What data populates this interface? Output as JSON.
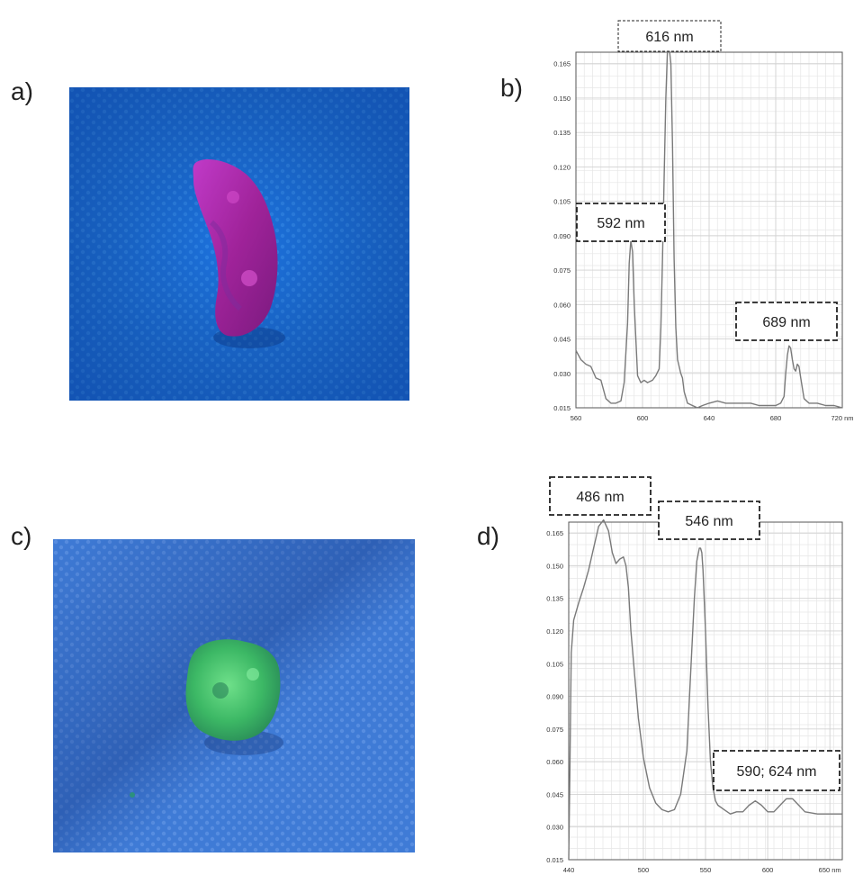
{
  "panels": {
    "a": {
      "letter": "a)"
    },
    "b": {
      "letter": "b)"
    },
    "c": {
      "letter": "c)"
    },
    "d": {
      "letter": "d)"
    }
  },
  "photos": {
    "a": {
      "background": "#1e78e6",
      "specimen_color": "#b02aa8"
    },
    "c": {
      "background": "#3c7ad6",
      "specimen_color": "#3fc36a"
    }
  },
  "chart_data": [
    {
      "type": "line",
      "panel": "b",
      "x_unit": "nm",
      "xlim": [
        560,
        720
      ],
      "ylim": [
        0.015,
        0.17
      ],
      "x_ticks": [
        560,
        600,
        640,
        680,
        720
      ],
      "x_tick_labels": [
        "560",
        "600",
        "640",
        "680",
        "720 nm"
      ],
      "y_ticks": [
        0.015,
        0.03,
        0.045,
        0.06,
        0.075,
        0.09,
        0.105,
        0.12,
        0.135,
        0.15,
        0.165
      ],
      "y_tick_labels": [
        "0.015",
        "0.030",
        "0.045",
        "0.060",
        "0.075",
        "0.090",
        "0.105",
        "0.120",
        "0.135",
        "0.150",
        "0.165"
      ],
      "grid": true,
      "line_color": "#7a7a7a",
      "series": [
        {
          "x": [
            560,
            563,
            566,
            569,
            572,
            575,
            578,
            581,
            584,
            587,
            589,
            591,
            592,
            593,
            594,
            595,
            597,
            599,
            601,
            603,
            606,
            608,
            610,
            611,
            612,
            613,
            614,
            615,
            616,
            617,
            618,
            619,
            620,
            621,
            622,
            623,
            624,
            625,
            627,
            630,
            633,
            636,
            640,
            645,
            650,
            655,
            660,
            665,
            670,
            675,
            680,
            683,
            685,
            686,
            687,
            688,
            689,
            690,
            691,
            692,
            693,
            694,
            695,
            697,
            700,
            705,
            710,
            715,
            720
          ],
          "y": [
            0.04,
            0.036,
            0.034,
            0.033,
            0.028,
            0.027,
            0.019,
            0.017,
            0.017,
            0.018,
            0.026,
            0.052,
            0.078,
            0.088,
            0.083,
            0.06,
            0.029,
            0.026,
            0.027,
            0.026,
            0.027,
            0.029,
            0.032,
            0.05,
            0.08,
            0.115,
            0.15,
            0.172,
            0.172,
            0.165,
            0.13,
            0.08,
            0.05,
            0.036,
            0.033,
            0.03,
            0.028,
            0.022,
            0.017,
            0.016,
            0.015,
            0.016,
            0.017,
            0.018,
            0.017,
            0.017,
            0.017,
            0.017,
            0.016,
            0.016,
            0.016,
            0.017,
            0.02,
            0.03,
            0.038,
            0.042,
            0.041,
            0.036,
            0.032,
            0.031,
            0.034,
            0.033,
            0.028,
            0.019,
            0.017,
            0.017,
            0.016,
            0.016,
            0.015
          ]
        }
      ],
      "annotations": [
        {
          "text": "616 nm",
          "style": "dotted",
          "attach_x": 616
        },
        {
          "text": "592 nm",
          "style": "dashed",
          "attach_x": 592
        },
        {
          "text": "689 nm",
          "style": "dashed",
          "attach_x": 689
        }
      ]
    },
    {
      "type": "line",
      "panel": "d",
      "x_unit": "nm",
      "xlim": [
        440,
        660
      ],
      "ylim": [
        0.015,
        0.17
      ],
      "x_ticks": [
        440,
        500,
        550,
        600,
        650
      ],
      "x_tick_labels": [
        "440",
        "500",
        "550",
        "600",
        "650 nm"
      ],
      "y_ticks": [
        0.015,
        0.03,
        0.045,
        0.06,
        0.075,
        0.09,
        0.105,
        0.12,
        0.135,
        0.15,
        0.165
      ],
      "y_tick_labels": [
        "0.015",
        "0.030",
        "0.045",
        "0.060",
        "0.075",
        "0.090",
        "0.105",
        "0.120",
        "0.135",
        "0.150",
        "0.165"
      ],
      "grid": true,
      "line_color": "#7a7a7a",
      "series": [
        {
          "x": [
            440,
            441,
            442,
            444,
            448,
            452,
            456,
            460,
            464,
            468,
            472,
            475,
            478,
            481,
            484,
            486,
            488,
            490,
            493,
            496,
            500,
            505,
            510,
            515,
            520,
            525,
            530,
            535,
            538,
            541,
            543,
            545,
            546,
            547,
            548,
            550,
            552,
            554,
            556,
            558,
            560,
            565,
            570,
            575,
            580,
            585,
            590,
            595,
            600,
            605,
            610,
            615,
            620,
            625,
            630,
            640,
            650,
            660
          ],
          "y": [
            0.015,
            0.06,
            0.11,
            0.125,
            0.133,
            0.14,
            0.148,
            0.158,
            0.168,
            0.171,
            0.166,
            0.156,
            0.151,
            0.153,
            0.154,
            0.15,
            0.14,
            0.12,
            0.1,
            0.08,
            0.062,
            0.048,
            0.041,
            0.038,
            0.037,
            0.038,
            0.045,
            0.065,
            0.1,
            0.135,
            0.152,
            0.158,
            0.158,
            0.156,
            0.148,
            0.12,
            0.085,
            0.06,
            0.048,
            0.042,
            0.04,
            0.038,
            0.036,
            0.037,
            0.037,
            0.04,
            0.042,
            0.04,
            0.037,
            0.037,
            0.04,
            0.043,
            0.043,
            0.04,
            0.037,
            0.036,
            0.036,
            0.036
          ]
        }
      ],
      "annotations": [
        {
          "text": "486 nm",
          "style": "dashed",
          "attach_x": 472
        },
        {
          "text": "546 nm",
          "style": "dashed",
          "attach_x": 546
        },
        {
          "text": "590; 624 nm",
          "style": "dashed",
          "attach_x": 607
        }
      ]
    }
  ]
}
